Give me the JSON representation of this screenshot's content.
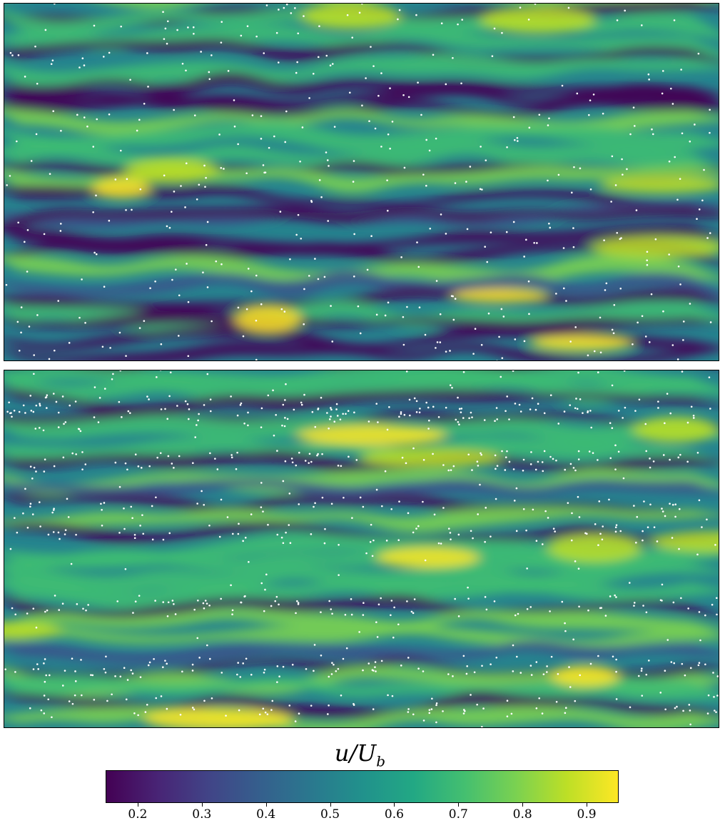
{
  "chart_data": [
    {
      "type": "heatmap",
      "panel": "top",
      "title": "",
      "xlabel": "",
      "ylabel": "",
      "variable": "u/U_b",
      "particles": "sparse, randomly distributed white dots"
    },
    {
      "type": "heatmap",
      "panel": "bottom",
      "title": "",
      "xlabel": "",
      "ylabel": "",
      "variable": "u/U_b",
      "particles": "dense white dots concentrated in low-speed streaks"
    }
  ],
  "colorbar": {
    "label_main": "u/U",
    "label_sub": "b",
    "colormap": "viridis",
    "range": [
      0.15,
      0.95
    ],
    "ticks": [
      "0.2",
      "0.3",
      "0.4",
      "0.5",
      "0.6",
      "0.7",
      "0.8",
      "0.9"
    ],
    "tick_values": [
      0.2,
      0.3,
      0.4,
      0.5,
      0.6,
      0.7,
      0.8,
      0.9
    ]
  },
  "colors": {
    "low": "#440154",
    "mid": "#21918c",
    "high": "#fde725",
    "particle": "#ffffff"
  }
}
